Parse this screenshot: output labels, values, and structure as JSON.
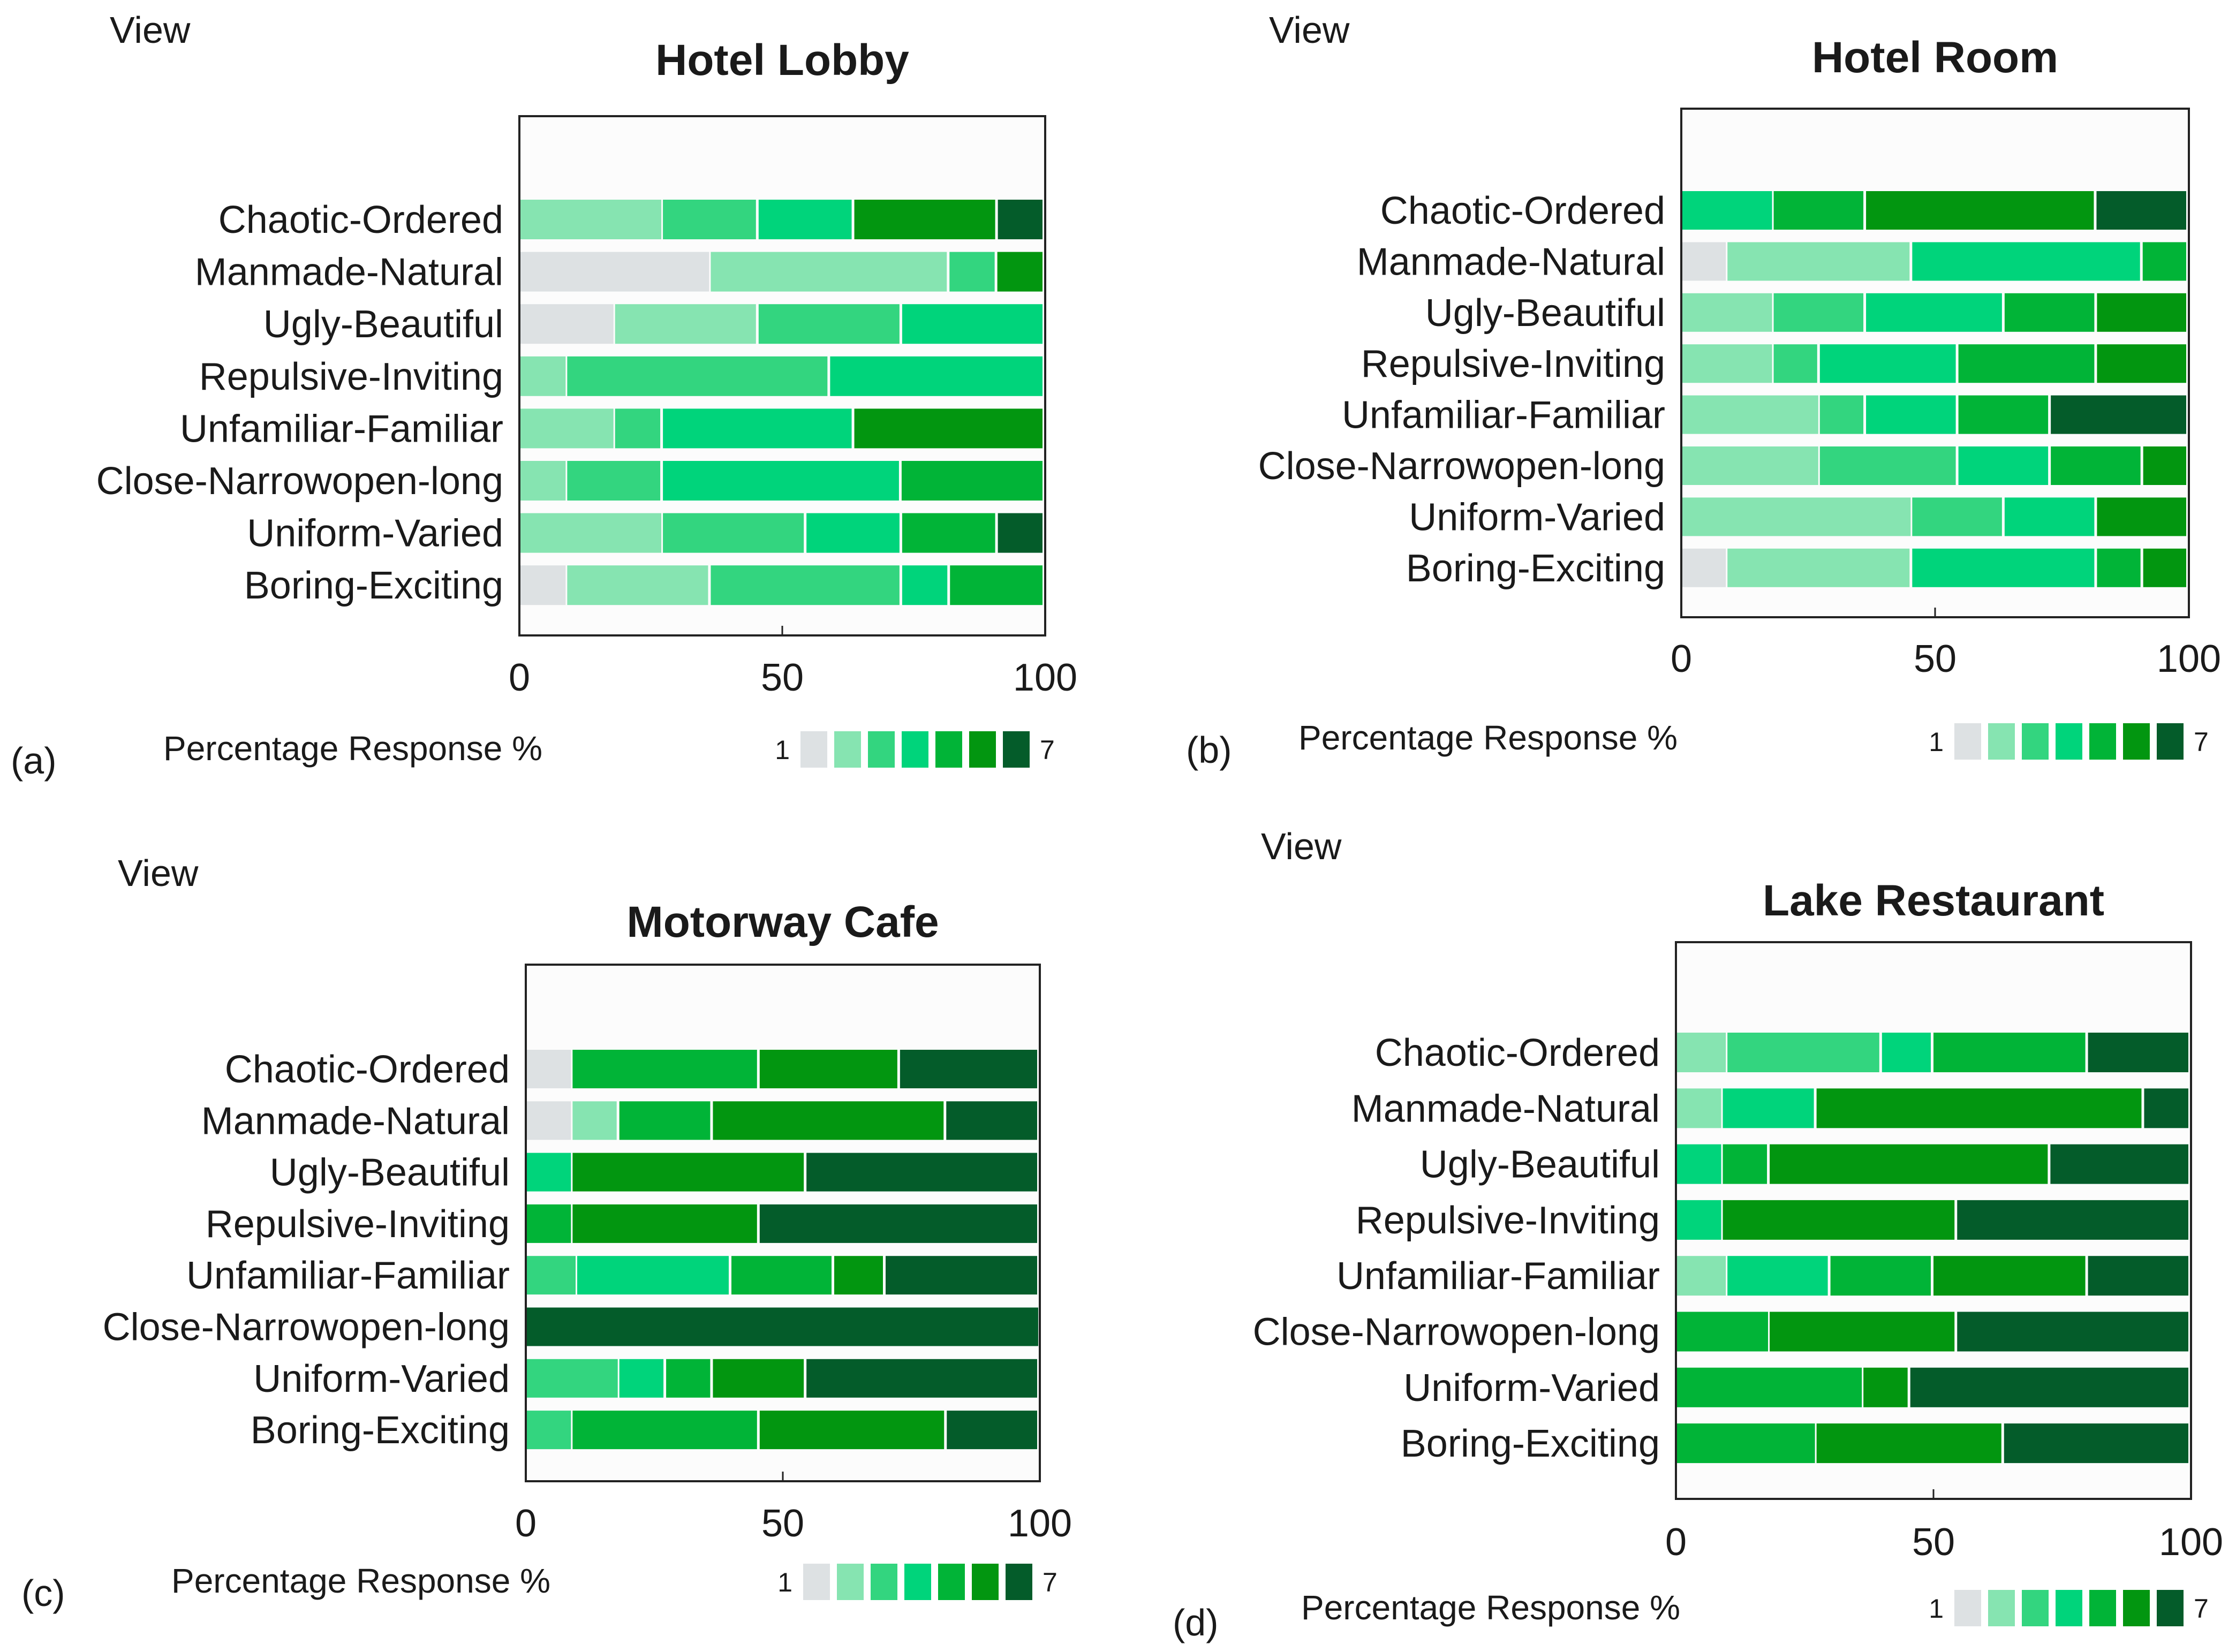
{
  "figure": {
    "view_label": "View",
    "x_label": "Percentage Response %",
    "scale_low": "1",
    "scale_high": "7",
    "tick_labels": [
      "0",
      "50",
      "100"
    ],
    "colors": {
      "levels": [
        "#dde1e3",
        "#86e4b1",
        "#33d57f",
        "#00d47b",
        "#01b437",
        "#029610",
        "#045c2a"
      ],
      "plot_bg": "#fcfcfc",
      "frame": "#222222",
      "text": "#1a1a1a"
    }
  },
  "chart_data": [
    {
      "type": "bar",
      "stacked": true,
      "orientation": "horizontal",
      "panel": "(a)",
      "title": "Hotel Lobby",
      "xlim": [
        0,
        100
      ],
      "ylabel": "View",
      "xlabel": "Percentage Response %",
      "categories": [
        "Chaotic-Ordered",
        "Manmade-Natural",
        "Ugly-Beautiful",
        "Repulsive-Inviting",
        "Unfamiliar-Familiar",
        "Close-Narrowopen-long",
        "Uniform-Varied",
        "Boring-Exciting"
      ],
      "series": [
        {
          "name": "1",
          "values": [
            0,
            36.4,
            18.2,
            0,
            0,
            0,
            0,
            9.1
          ]
        },
        {
          "name": "2",
          "values": [
            27.3,
            45.4,
            27.3,
            9.1,
            18.2,
            9.1,
            27.3,
            27.3
          ]
        },
        {
          "name": "3",
          "values": [
            18.2,
            9.1,
            27.3,
            50.0,
            9.1,
            18.2,
            27.3,
            36.4
          ]
        },
        {
          "name": "4",
          "values": [
            18.2,
            0,
            27.2,
            40.9,
            36.4,
            45.4,
            18.2,
            9.1
          ]
        },
        {
          "name": "5",
          "values": [
            0,
            0,
            0,
            0,
            0,
            27.3,
            18.2,
            18.1
          ]
        },
        {
          "name": "6",
          "values": [
            27.3,
            9.1,
            0,
            0,
            36.3,
            0,
            0,
            0
          ]
        },
        {
          "name": "7",
          "values": [
            9.0,
            0,
            0,
            0,
            0,
            0,
            9.0,
            0
          ]
        }
      ]
    },
    {
      "type": "bar",
      "stacked": true,
      "orientation": "horizontal",
      "panel": "(b)",
      "title": "Hotel Room",
      "xlim": [
        0,
        100
      ],
      "ylabel": "View",
      "xlabel": "Percentage Response %",
      "categories": [
        "Chaotic-Ordered",
        "Manmade-Natural",
        "Ugly-Beautiful",
        "Repulsive-Inviting",
        "Unfamiliar-Familiar",
        "Close-Narrowopen-long",
        "Uniform-Varied",
        "Boring-Exciting"
      ],
      "series": [
        {
          "name": "1",
          "values": [
            0,
            9.1,
            0,
            0,
            0,
            0,
            0,
            9.1
          ]
        },
        {
          "name": "2",
          "values": [
            0,
            36.4,
            18.2,
            18.2,
            27.3,
            27.3,
            45.5,
            36.4
          ]
        },
        {
          "name": "3",
          "values": [
            0,
            0,
            18.2,
            9.1,
            9.1,
            27.3,
            18.2,
            0
          ]
        },
        {
          "name": "4",
          "values": [
            18.2,
            45.4,
            27.3,
            27.3,
            18.2,
            18.2,
            18.2,
            36.4
          ]
        },
        {
          "name": "5",
          "values": [
            18.2,
            9.1,
            18.2,
            27.3,
            18.2,
            18.2,
            0,
            9.1
          ]
        },
        {
          "name": "6",
          "values": [
            45.4,
            0,
            18.1,
            18.1,
            0,
            9.0,
            18.1,
            9.0
          ]
        },
        {
          "name": "7",
          "values": [
            18.2,
            0,
            0,
            0,
            27.2,
            0,
            0,
            0
          ]
        }
      ]
    },
    {
      "type": "bar",
      "stacked": true,
      "orientation": "horizontal",
      "panel": "(c)",
      "title": "Motorway Cafe",
      "xlim": [
        0,
        100
      ],
      "ylabel": "View",
      "xlabel": "Percentage Response %",
      "categories": [
        "Chaotic-Ordered",
        "Manmade-Natural",
        "Ugly-Beautiful",
        "Repulsive-Inviting",
        "Unfamiliar-Familiar",
        "Close-Narrowopen-long",
        "Uniform-Varied",
        "Boring-Exciting"
      ],
      "series": [
        {
          "name": "1",
          "values": [
            9.1,
            9.1,
            0,
            0,
            0,
            0,
            0,
            0
          ]
        },
        {
          "name": "2",
          "values": [
            0,
            9.1,
            0,
            0,
            0,
            0,
            0,
            0
          ]
        },
        {
          "name": "3",
          "values": [
            0,
            0,
            0,
            0,
            10.0,
            0,
            18.2,
            9.1
          ]
        },
        {
          "name": "4",
          "values": [
            0,
            0,
            9.1,
            0,
            30.0,
            0,
            9.1,
            0
          ]
        },
        {
          "name": "5",
          "values": [
            36.4,
            18.2,
            0,
            9.1,
            20.0,
            0,
            9.1,
            36.4
          ]
        },
        {
          "name": "6",
          "values": [
            27.3,
            45.4,
            45.5,
            36.4,
            10.0,
            0,
            18.2,
            36.4
          ]
        },
        {
          "name": "7",
          "values": [
            27.2,
            18.2,
            45.4,
            54.5,
            30.0,
            100,
            45.4,
            18.1
          ]
        }
      ]
    },
    {
      "type": "bar",
      "stacked": true,
      "orientation": "horizontal",
      "panel": "(d)",
      "title": "Lake Restaurant",
      "xlim": [
        0,
        100
      ],
      "ylabel": "View",
      "xlabel": "Percentage Response %",
      "categories": [
        "Chaotic-Ordered",
        "Manmade-Natural",
        "Ugly-Beautiful",
        "Repulsive-Inviting",
        "Unfamiliar-Familiar",
        "Close-Narrowopen-long",
        "Uniform-Varied",
        "Boring-Exciting"
      ],
      "series": [
        {
          "name": "1",
          "values": [
            0,
            0,
            0,
            0,
            0,
            0,
            0,
            0
          ]
        },
        {
          "name": "2",
          "values": [
            10.0,
            9.1,
            0,
            0,
            10.0,
            0,
            0,
            0
          ]
        },
        {
          "name": "3",
          "values": [
            30.0,
            0,
            0,
            0,
            0,
            0,
            0,
            0
          ]
        },
        {
          "name": "4",
          "values": [
            10.0,
            18.2,
            9.1,
            9.1,
            20.0,
            0,
            0,
            0
          ]
        },
        {
          "name": "5",
          "values": [
            30.0,
            0,
            9.1,
            0,
            20.0,
            18.2,
            36.4,
            27.3
          ]
        },
        {
          "name": "6",
          "values": [
            0,
            63.6,
            54.5,
            45.5,
            30.0,
            36.4,
            9.1,
            36.4
          ]
        },
        {
          "name": "7",
          "values": [
            20.0,
            9.1,
            27.3,
            45.4,
            20.0,
            45.4,
            54.5,
            36.3
          ]
        }
      ]
    }
  ]
}
